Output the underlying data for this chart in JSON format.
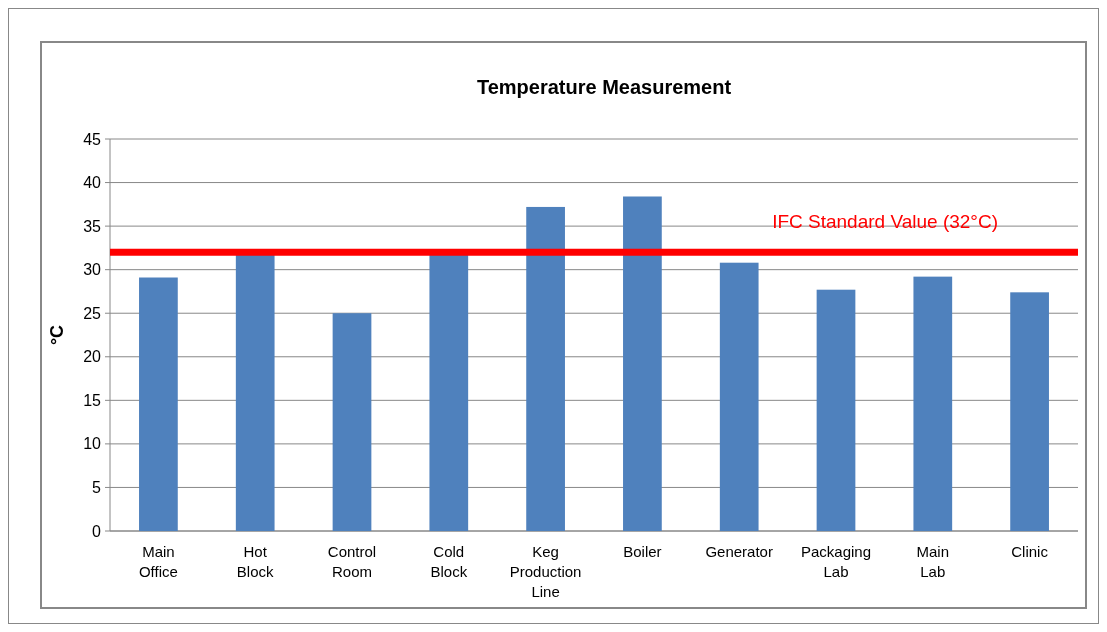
{
  "chart_data": {
    "type": "bar",
    "title": "Temperature Measurement",
    "ylabel": "°C",
    "categories": [
      "Main Office",
      "Hot Block",
      "Control Room",
      "Cold Block",
      "Keg Production Line",
      "Boiler",
      "Generator",
      "Packaging Lab",
      "Main Lab",
      "Clinic"
    ],
    "values": [
      29.1,
      31.7,
      25.0,
      31.7,
      37.2,
      38.4,
      30.8,
      27.7,
      29.2,
      27.4
    ],
    "color": "#4f81bd",
    "ylim": [
      0,
      45
    ],
    "yticks": [
      0,
      5,
      10,
      15,
      20,
      25,
      30,
      35,
      40,
      45
    ],
    "grid": "y",
    "ref_lines": [
      {
        "axis": "y",
        "value": 32,
        "label": "IFC Standard Value (32°C)",
        "color": "#ff0000"
      }
    ]
  }
}
